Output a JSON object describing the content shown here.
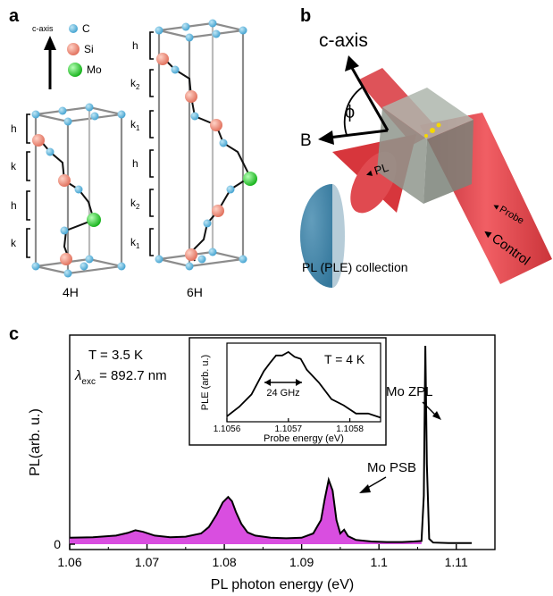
{
  "panel_a": {
    "letter": "a",
    "legend": {
      "axis_label": "c-axis",
      "items": [
        {
          "label": "C",
          "color": "#5bb6d8"
        },
        {
          "label": "Si",
          "color": "#ee8a78"
        },
        {
          "label": "Mo",
          "color": "#22c825"
        }
      ]
    },
    "left_crystal": {
      "name": "4H",
      "stacking": [
        "h",
        "k",
        "h",
        "k"
      ]
    },
    "right_crystal": {
      "name": "6H",
      "stacking": [
        "h",
        "k2",
        "k1",
        "h",
        "k2",
        "k1"
      ]
    }
  },
  "panel_b": {
    "letter": "b",
    "caxis_label": "c-axis",
    "angle_label": "ϕ",
    "field_label": "B",
    "pl_label": "PL",
    "probe_label": "Probe",
    "control_label": "Control",
    "collection_label": "PL (PLE) collection"
  },
  "panel_c": {
    "letter": "c",
    "conditions": {
      "temperature": "T = 3.5 K",
      "lambda_symbol": "λ",
      "lambda_sub": "exc",
      "lambda_value": " = 892.7 nm"
    },
    "labels": {
      "zpl": "Mo ZPL",
      "psb": "Mo PSB"
    },
    "inset": {
      "temperature": "T = 4 K",
      "linewidth": "24 GHz"
    },
    "fill_color": "#d94ee0"
  },
  "chart_data": [
    {
      "type": "area",
      "xlabel": "PL photon energy (eV)",
      "ylabel": "PL(arb. u.)",
      "xlim": [
        1.06,
        1.115
      ],
      "ylim": [
        -0.1,
        3.9
      ],
      "xticks": [
        "1.06",
        "1.07",
        "1.08",
        "1.09",
        "1.1",
        "1.11"
      ],
      "yticks": [
        "0"
      ],
      "series": [
        {
          "x": [
            1.06,
            1.063,
            1.066,
            1.0675,
            1.0685,
            1.0695,
            1.071,
            1.073,
            1.075,
            1.077,
            1.078,
            1.079,
            1.0798,
            1.0805,
            1.081,
            1.0815,
            1.0822,
            1.083,
            1.084,
            1.086,
            1.088,
            1.09,
            1.0915,
            1.0925,
            1.093,
            1.0935,
            1.094,
            1.0945,
            1.095,
            1.0955,
            1.096,
            1.097,
            1.099,
            1.101,
            1.103,
            1.1045,
            1.1055,
            1.1058,
            1.106,
            1.1062,
            1.1065,
            1.107,
            1.109,
            1.112
          ],
          "y": [
            0.12,
            0.13,
            0.16,
            0.21,
            0.26,
            0.23,
            0.16,
            0.13,
            0.14,
            0.2,
            0.32,
            0.55,
            0.78,
            0.88,
            0.8,
            0.6,
            0.38,
            0.22,
            0.16,
            0.12,
            0.11,
            0.12,
            0.2,
            0.45,
            0.85,
            1.2,
            1.0,
            0.45,
            0.2,
            0.27,
            0.15,
            0.08,
            0.05,
            0.04,
            0.04,
            0.05,
            0.06,
            0.9,
            3.7,
            1.5,
            0.1,
            0.03,
            0.02,
            0.02
          ]
        }
      ]
    },
    {
      "type": "line",
      "xlabel": "Probe energy (eV)",
      "ylabel": "PLE (arb. u.)",
      "xlim": [
        1.1056,
        1.10585
      ],
      "ylim": [
        0,
        1.15
      ],
      "xticks": [
        "1.1056",
        "1.1057",
        "1.1058"
      ],
      "series": [
        {
          "x": [
            1.1056,
            1.10562,
            1.10564,
            1.10566,
            1.10567,
            1.10568,
            1.10569,
            1.1057,
            1.10571,
            1.10572,
            1.10573,
            1.10575,
            1.10577,
            1.10579,
            1.10581,
            1.10583,
            1.10585
          ],
          "y": [
            0.1,
            0.2,
            0.42,
            0.72,
            0.88,
            0.95,
            0.99,
            1.0,
            0.97,
            0.9,
            0.78,
            0.55,
            0.35,
            0.22,
            0.14,
            0.1,
            0.08
          ]
        }
      ]
    }
  ]
}
